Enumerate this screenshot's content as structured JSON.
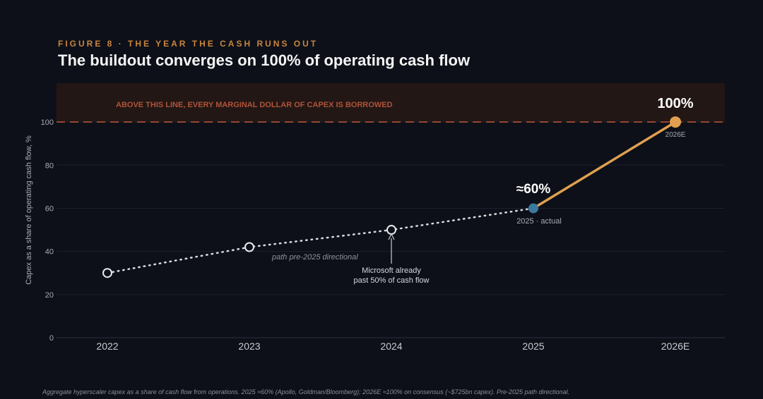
{
  "header": {
    "eyebrow": "FIGURE 8 · THE YEAR THE CASH RUNS OUT",
    "title": "The buildout converges on 100% of operating cash flow"
  },
  "footnote": "Aggregate hyperscaler capex as a share of cash flow from operations. 2025 ≈60% (Apollo, Goldman/Bloomberg); 2026E ≈100% on consensus (~$725bn capex). Pre-2025 path directional.",
  "colors": {
    "background": "#0d1018",
    "accent_orange": "#e0a050",
    "threshold_red": "#b0533a",
    "actual_blue": "#3b7aa0",
    "dotted_path": "#d8dbe0"
  },
  "chart_data": {
    "type": "line",
    "categories": [
      "2022",
      "2023",
      "2024",
      "2025",
      "2026E"
    ],
    "ylabel": "Capex as a share of operating cash flow, %",
    "ylim": [
      0,
      118
    ],
    "yticks": [
      0,
      20,
      40,
      60,
      80,
      100
    ],
    "grid": true,
    "series": [
      {
        "style": "dotted",
        "points": [
          [
            0,
            30
          ],
          [
            1,
            42
          ],
          [
            2,
            50
          ],
          [
            3,
            60
          ]
        ]
      },
      {
        "style": "solid",
        "points": [
          [
            3,
            60
          ],
          [
            4,
            100
          ]
        ]
      }
    ],
    "threshold": {
      "value": 100,
      "label": "ABOVE THIS LINE, EVERY MARGINAL DOLLAR OF CAPEX IS BORROWED"
    },
    "annotations": {
      "path_note": "path pre-2025 directional",
      "microsoft_line1": "Microsoft already",
      "microsoft_line2": "past 50% of cash flow",
      "value_2025": "≈60%",
      "label_2025": "2025 · actual",
      "value_2026": "100%",
      "label_2026": "2026E"
    }
  }
}
